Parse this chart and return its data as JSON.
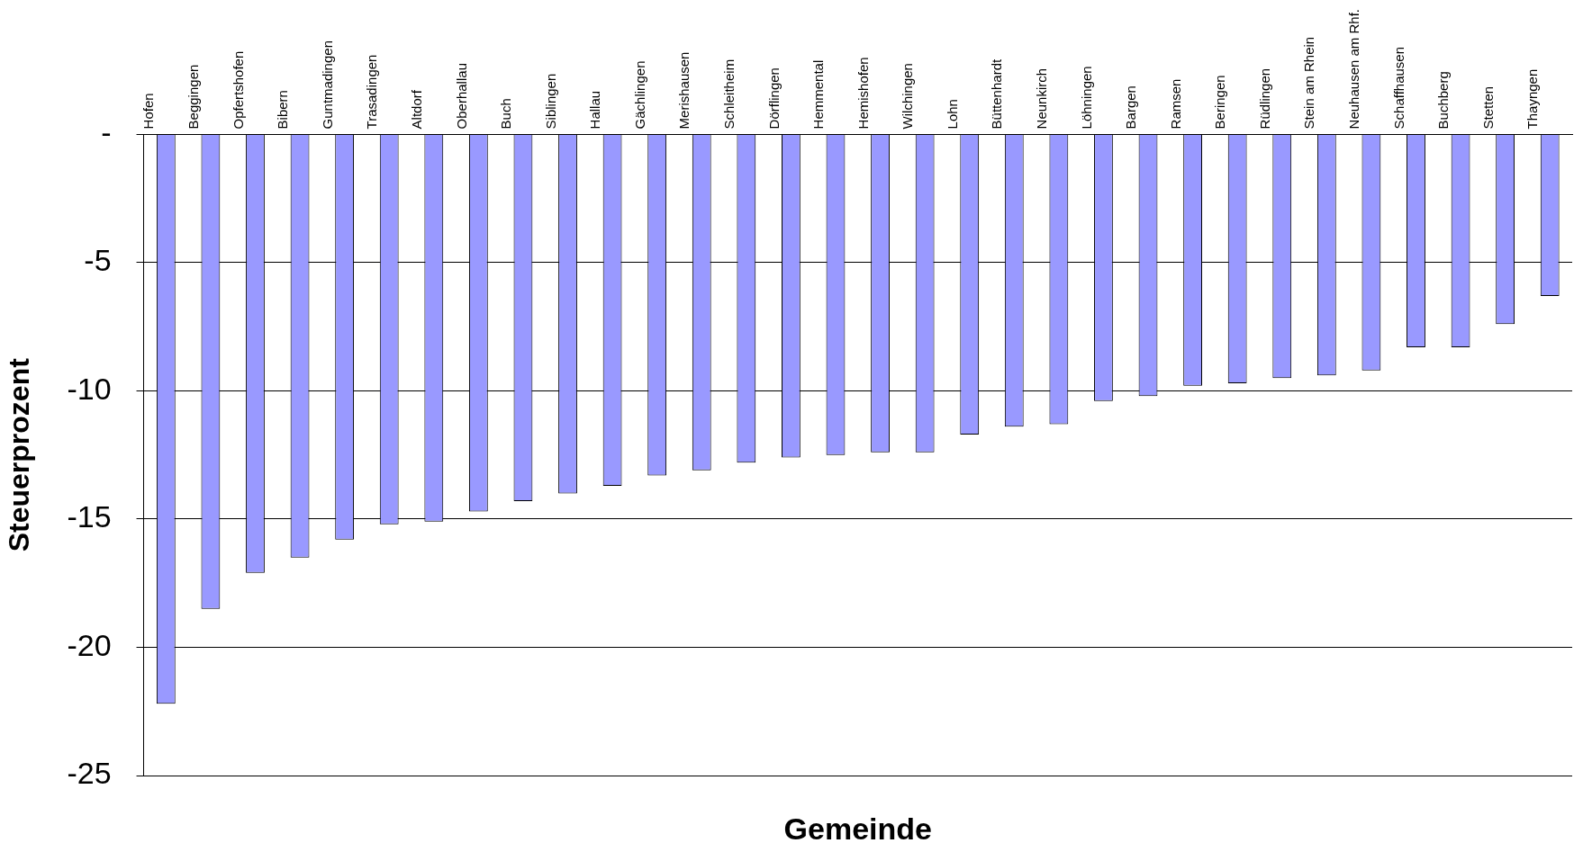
{
  "chart_data": {
    "type": "bar",
    "xlabel": "Gemeinde",
    "ylabel": "Steuerprozent",
    "categories": [
      "Hofen",
      "Beggingen",
      "Opfertshofen",
      "Bibern",
      "Guntmadingen",
      "Trasadingen",
      "Altdorf",
      "Oberhallau",
      "Buch",
      "Siblingen",
      "Hallau",
      "Gächlingen",
      "Merishausen",
      "Schleitheim",
      "Dörflingen",
      "Hemmental",
      "Hemishofen",
      "Wilchingen",
      "Lohn",
      "Büttenhardt",
      "Neunkirch",
      "Löhningen",
      "Bargen",
      "Ramsen",
      "Beringen",
      "Rüdlingen",
      "Stein am Rhein",
      "Neuhausen am Rhf.",
      "Schaffhausen",
      "Buchberg",
      "Stetten",
      "Thayngen"
    ],
    "values": [
      -22.2,
      -18.5,
      -17.1,
      -16.5,
      -15.8,
      -15.2,
      -15.1,
      -14.7,
      -14.3,
      -14.0,
      -13.7,
      -13.3,
      -13.1,
      -12.8,
      -12.6,
      -12.5,
      -12.4,
      -12.4,
      -11.7,
      -11.4,
      -11.3,
      -10.4,
      -10.2,
      -9.8,
      -9.7,
      -9.5,
      -9.4,
      -9.2,
      -8.3,
      -8.3,
      -7.4,
      -6.3
    ],
    "color": "#9999ff",
    "ylim": [
      -25,
      0
    ],
    "yticks": [
      {
        "value": 0,
        "label": "-"
      },
      -5,
      -10,
      -15,
      -20,
      -25
    ],
    "grid": "y"
  }
}
